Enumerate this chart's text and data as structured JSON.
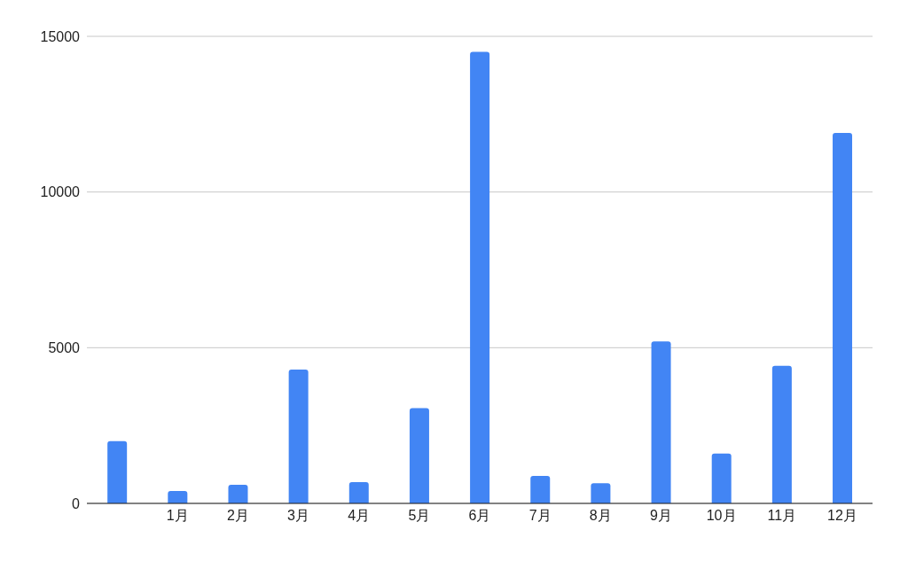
{
  "chart_data": {
    "type": "bar",
    "categories": [
      null,
      "1月",
      "2月",
      "3月",
      "4月",
      "5月",
      "6月",
      "7月",
      "8月",
      "9月",
      "10月",
      "11月",
      "12月"
    ],
    "values": [
      2000,
      400,
      600,
      4300,
      680,
      3060,
      14500,
      880,
      650,
      5200,
      1600,
      4420,
      11900
    ],
    "color": "#4285f4",
    "ylim": [
      0,
      15000
    ],
    "yticks": [
      0,
      5000,
      10000,
      15000
    ],
    "grid": "y",
    "legend": false
  }
}
